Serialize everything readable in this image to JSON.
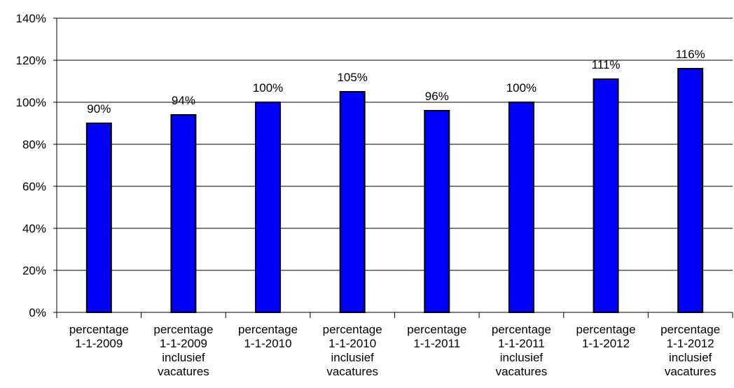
{
  "chart_data": {
    "type": "bar",
    "categories": [
      [
        "percentage",
        "1-1-2009"
      ],
      [
        "percentage",
        "1-1-2009",
        "inclusief",
        "vacatures"
      ],
      [
        "percentage",
        "1-1-2010"
      ],
      [
        "percentage",
        "1-1-2010",
        "inclusief",
        "vacatures"
      ],
      [
        "percentage",
        "1-1-2011"
      ],
      [
        "percentage",
        "1-1-2011",
        "inclusief",
        "vacatures"
      ],
      [
        "percentage",
        "1-1-2012"
      ],
      [
        "percentage",
        "1-1-2012",
        "inclusief",
        "vacatures"
      ]
    ],
    "values": [
      90,
      94,
      100,
      105,
      96,
      100,
      111,
      116
    ],
    "data_labels": [
      "90%",
      "94%",
      "100%",
      "105%",
      "96%",
      "100%",
      "111%",
      "116%"
    ],
    "y_ticks": [
      "0%",
      "20%",
      "40%",
      "60%",
      "80%",
      "100%",
      "120%",
      "140%"
    ],
    "ylim": [
      0,
      140
    ],
    "y_tick_step": 20,
    "grid": "horizontal",
    "legend": "none",
    "bar_color": "#0000ff",
    "bar_edge_color": "#000000"
  }
}
